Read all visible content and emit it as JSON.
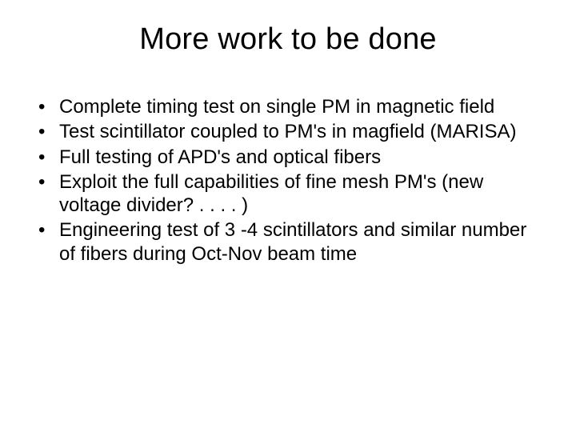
{
  "slide": {
    "title": "More work to be done",
    "title_fontsize": 38,
    "body_fontsize": 24,
    "background_color": "#ffffff",
    "text_color": "#000000",
    "font_family": "Arial",
    "bullets": [
      "Complete timing test on single PM in magnetic field",
      "Test scintillator coupled to PM's in magfield (MARISA)",
      "Full testing of APD's and optical fibers",
      "Exploit the full capabilities of fine mesh PM's (new voltage divider? . . . . )",
      "Engineering test of 3 -4 scintillators and similar number of fibers during Oct-Nov beam time"
    ]
  }
}
